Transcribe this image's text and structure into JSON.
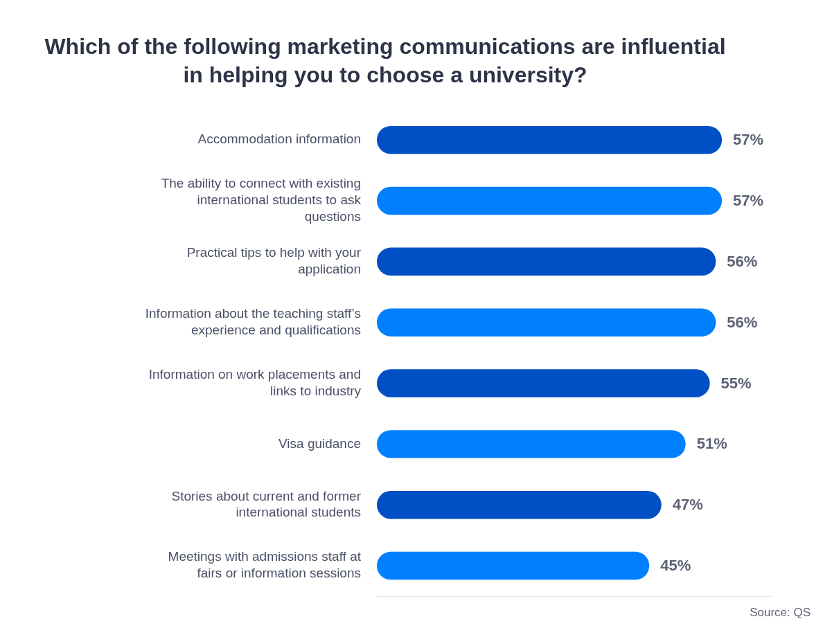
{
  "chart_data": {
    "type": "bar",
    "orientation": "horizontal",
    "title": "Which of the following marketing communications are influential in helping you to choose a university?",
    "categories": [
      "Accommodation information",
      "The ability to connect with existing international students to ask questions",
      "Practical tips to help with your application",
      "Information about the teaching staff’s experience and qualifications",
      "Information on work placements and links to industry",
      "Visa guidance",
      "Stories about current and former international students",
      "Meetings with admissions staff at fairs or information sessions"
    ],
    "values": [
      57,
      57,
      56,
      56,
      55,
      51,
      47,
      45
    ],
    "value_labels": [
      "57%",
      "57%",
      "56%",
      "56%",
      "55%",
      "51%",
      "47%",
      "45%"
    ],
    "colors": [
      "#004fc4",
      "#0080ff",
      "#004fc4",
      "#0080ff",
      "#004fc4",
      "#0080ff",
      "#004fc4",
      "#0080ff"
    ],
    "xlim": [
      0,
      65
    ],
    "grid": false,
    "tick_labels": "y",
    "data_labels": true,
    "source": "Source: QS"
  }
}
